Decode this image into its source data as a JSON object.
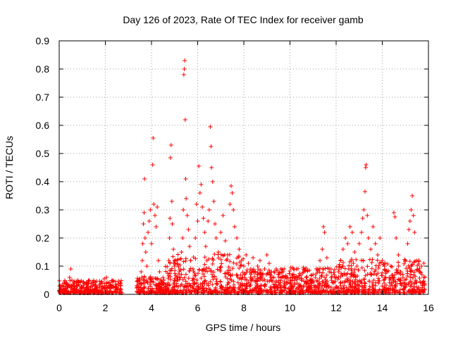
{
  "chart_data": {
    "type": "scatter",
    "title": "Day 126 of 2023, Rate Of TEC Index for receiver gamb",
    "xlabel": "GPS time / hours",
    "ylabel": "ROTI / TECUs",
    "xlim": [
      0,
      16
    ],
    "ylim": [
      0,
      0.9
    ],
    "xticks": [
      0,
      2,
      4,
      6,
      8,
      10,
      12,
      14,
      16
    ],
    "yticks": [
      0,
      0.1,
      0.2,
      0.3,
      0.4,
      0.5,
      0.6,
      0.7,
      0.8,
      0.9
    ],
    "grid": true,
    "marker": "+",
    "color": "#ff0000",
    "points": [
      [
        0.05,
        0.02
      ],
      [
        0.12,
        0.03
      ],
      [
        0.2,
        0.015
      ],
      [
        0.3,
        0.04
      ],
      [
        0.38,
        0.025
      ],
      [
        0.45,
        0.06
      ],
      [
        0.5,
        0.09
      ],
      [
        0.55,
        0.05
      ],
      [
        0.6,
        0.035
      ],
      [
        0.7,
        0.02
      ],
      [
        0.8,
        0.03
      ],
      [
        0.9,
        0.015
      ],
      [
        1.0,
        0.025
      ],
      [
        1.1,
        0.02
      ],
      [
        1.2,
        0.035
      ],
      [
        1.3,
        0.05
      ],
      [
        1.38,
        0.04
      ],
      [
        1.45,
        0.03
      ],
      [
        1.55,
        0.02
      ],
      [
        1.65,
        0.025
      ],
      [
        1.75,
        0.03
      ],
      [
        1.85,
        0.045
      ],
      [
        1.95,
        0.055
      ],
      [
        2.05,
        0.06
      ],
      [
        2.15,
        0.04
      ],
      [
        2.25,
        0.03
      ],
      [
        2.35,
        0.025
      ],
      [
        2.45,
        0.035
      ],
      [
        2.55,
        0.02
      ],
      [
        2.65,
        0.03
      ],
      [
        3.4,
        0.03
      ],
      [
        3.5,
        0.05
      ],
      [
        3.55,
        0.08
      ],
      [
        3.6,
        0.12
      ],
      [
        3.62,
        0.18
      ],
      [
        3.65,
        0.25
      ],
      [
        3.68,
        0.29
      ],
      [
        3.7,
        0.41
      ],
      [
        3.72,
        0.2
      ],
      [
        3.75,
        0.15
      ],
      [
        3.8,
        0.1
      ],
      [
        3.85,
        0.22
      ],
      [
        3.9,
        0.26
      ],
      [
        3.95,
        0.3
      ],
      [
        4.0,
        0.18
      ],
      [
        4.05,
        0.46
      ],
      [
        4.07,
        0.555
      ],
      [
        4.1,
        0.32
      ],
      [
        4.15,
        0.28
      ],
      [
        4.2,
        0.24
      ],
      [
        4.25,
        0.31
      ],
      [
        4.3,
        0.12
      ],
      [
        4.35,
        0.08
      ],
      [
        4.4,
        0.05
      ],
      [
        4.5,
        0.04
      ],
      [
        4.6,
        0.03
      ],
      [
        4.7,
        0.02
      ],
      [
        4.75,
        0.12
      ],
      [
        4.78,
        0.2
      ],
      [
        4.8,
        0.27
      ],
      [
        4.82,
        0.485
      ],
      [
        4.85,
        0.53
      ],
      [
        4.88,
        0.33
      ],
      [
        4.9,
        0.25
      ],
      [
        4.95,
        0.16
      ],
      [
        5.0,
        0.1
      ],
      [
        5.1,
        0.06
      ],
      [
        5.2,
        0.08
      ],
      [
        5.3,
        0.15
      ],
      [
        5.35,
        0.2
      ],
      [
        5.38,
        0.3
      ],
      [
        5.4,
        0.78
      ],
      [
        5.42,
        0.8
      ],
      [
        5.44,
        0.83
      ],
      [
        5.46,
        0.62
      ],
      [
        5.48,
        0.41
      ],
      [
        5.5,
        0.34
      ],
      [
        5.55,
        0.28
      ],
      [
        5.6,
        0.23
      ],
      [
        5.65,
        0.17
      ],
      [
        5.7,
        0.12
      ],
      [
        5.8,
        0.09
      ],
      [
        5.9,
        0.2
      ],
      [
        5.95,
        0.32
      ],
      [
        6.0,
        0.26
      ],
      [
        6.05,
        0.455
      ],
      [
        6.1,
        0.36
      ],
      [
        6.15,
        0.39
      ],
      [
        6.2,
        0.31
      ],
      [
        6.25,
        0.27
      ],
      [
        6.3,
        0.22
      ],
      [
        6.35,
        0.17
      ],
      [
        6.4,
        0.12
      ],
      [
        6.45,
        0.26
      ],
      [
        6.5,
        0.3
      ],
      [
        6.55,
        0.595
      ],
      [
        6.58,
        0.525
      ],
      [
        6.6,
        0.45
      ],
      [
        6.65,
        0.4
      ],
      [
        6.7,
        0.33
      ],
      [
        6.75,
        0.25
      ],
      [
        6.8,
        0.2
      ],
      [
        6.9,
        0.15
      ],
      [
        7.0,
        0.22
      ],
      [
        7.1,
        0.28
      ],
      [
        7.2,
        0.19
      ],
      [
        7.3,
        0.14
      ],
      [
        7.4,
        0.32
      ],
      [
        7.45,
        0.385
      ],
      [
        7.5,
        0.36
      ],
      [
        7.55,
        0.3
      ],
      [
        7.6,
        0.24
      ],
      [
        7.7,
        0.2
      ],
      [
        7.8,
        0.16
      ],
      [
        7.9,
        0.12
      ],
      [
        8.0,
        0.1
      ],
      [
        8.1,
        0.14
      ],
      [
        8.2,
        0.11
      ],
      [
        8.3,
        0.09
      ],
      [
        8.4,
        0.13
      ],
      [
        8.5,
        0.08
      ],
      [
        8.6,
        0.1
      ],
      [
        8.7,
        0.12
      ],
      [
        8.8,
        0.07
      ],
      [
        8.9,
        0.09
      ],
      [
        9.0,
        0.14
      ],
      [
        9.1,
        0.11
      ],
      [
        9.2,
        0.08
      ],
      [
        9.3,
        0.06
      ],
      [
        9.4,
        0.09
      ],
      [
        9.5,
        0.07
      ],
      [
        9.6,
        0.05
      ],
      [
        9.7,
        0.08
      ],
      [
        9.8,
        0.06
      ],
      [
        9.9,
        0.04
      ],
      [
        10.0,
        0.05
      ],
      [
        10.1,
        0.07
      ],
      [
        10.2,
        0.05
      ],
      [
        10.3,
        0.04
      ],
      [
        10.4,
        0.06
      ],
      [
        10.5,
        0.05
      ],
      [
        10.6,
        0.08
      ],
      [
        10.7,
        0.06
      ],
      [
        10.8,
        0.04
      ],
      [
        10.9,
        0.05
      ],
      [
        11.0,
        0.07
      ],
      [
        11.1,
        0.06
      ],
      [
        11.2,
        0.09
      ],
      [
        11.3,
        0.12
      ],
      [
        11.4,
        0.16
      ],
      [
        11.45,
        0.24
      ],
      [
        11.5,
        0.22
      ],
      [
        11.6,
        0.13
      ],
      [
        11.7,
        0.08
      ],
      [
        11.8,
        0.05
      ],
      [
        11.9,
        0.04
      ],
      [
        12.0,
        0.06
      ],
      [
        12.2,
        0.12
      ],
      [
        12.3,
        0.16
      ],
      [
        12.4,
        0.2
      ],
      [
        12.5,
        0.18
      ],
      [
        12.6,
        0.24
      ],
      [
        12.7,
        0.22
      ],
      [
        12.8,
        0.15
      ],
      [
        12.9,
        0.1
      ],
      [
        13.0,
        0.18
      ],
      [
        13.1,
        0.22
      ],
      [
        13.15,
        0.27
      ],
      [
        13.2,
        0.3
      ],
      [
        13.25,
        0.365
      ],
      [
        13.28,
        0.45
      ],
      [
        13.3,
        0.46
      ],
      [
        13.35,
        0.28
      ],
      [
        13.4,
        0.2
      ],
      [
        13.5,
        0.16
      ],
      [
        13.6,
        0.24
      ],
      [
        13.7,
        0.18
      ],
      [
        13.8,
        0.14
      ],
      [
        13.9,
        0.2
      ],
      [
        14.0,
        0.12
      ],
      [
        14.1,
        0.1
      ],
      [
        14.2,
        0.08
      ],
      [
        14.3,
        0.06
      ],
      [
        14.4,
        0.04
      ],
      [
        14.5,
        0.29
      ],
      [
        14.55,
        0.275
      ],
      [
        14.6,
        0.2
      ],
      [
        14.7,
        0.14
      ],
      [
        14.8,
        0.08
      ],
      [
        14.9,
        0.06
      ],
      [
        15.0,
        0.12
      ],
      [
        15.1,
        0.18
      ],
      [
        15.15,
        0.23
      ],
      [
        15.2,
        0.26
      ],
      [
        15.25,
        0.3
      ],
      [
        15.3,
        0.35
      ],
      [
        15.35,
        0.28
      ],
      [
        15.4,
        0.22
      ],
      [
        15.5,
        0.12
      ],
      [
        15.6,
        0.08
      ],
      [
        15.7,
        0.1
      ],
      [
        15.8,
        0.06
      ]
    ]
  }
}
